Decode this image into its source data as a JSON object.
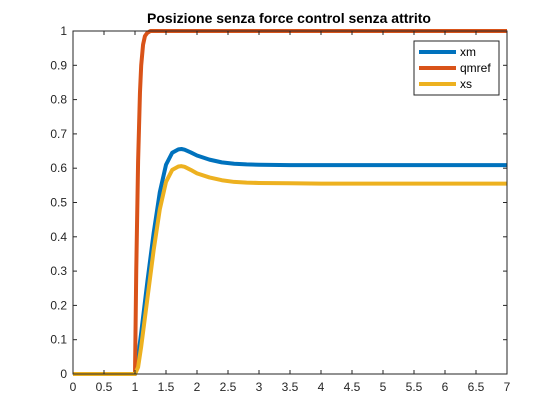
{
  "chart_data": {
    "type": "line",
    "title": "Posizione senza force control senza attrito",
    "xlabel": "",
    "ylabel": "",
    "xlim": [
      0,
      7
    ],
    "ylim": [
      0,
      1
    ],
    "xticks": [
      0,
      0.5,
      1,
      1.5,
      2,
      2.5,
      3,
      3.5,
      4,
      4.5,
      5,
      5.5,
      6,
      6.5,
      7
    ],
    "yticks": [
      0,
      0.1,
      0.2,
      0.3,
      0.4,
      0.5,
      0.6,
      0.7,
      0.8,
      0.9,
      1
    ],
    "xtick_labels": [
      "0",
      "0.5",
      "1",
      "1.5",
      "2",
      "2.5",
      "3",
      "3.5",
      "4",
      "4.5",
      "5",
      "5.5",
      "6",
      "6.5",
      "7"
    ],
    "ytick_labels": [
      "0",
      "0.1",
      "0.2",
      "0.3",
      "0.4",
      "0.5",
      "0.6",
      "0.7",
      "0.8",
      "0.9",
      "1"
    ],
    "grid": false,
    "legend_position": "top-right",
    "series": [
      {
        "name": "xm",
        "color": "#0072BD",
        "x": [
          0,
          1.0,
          1.05,
          1.1,
          1.2,
          1.3,
          1.4,
          1.5,
          1.6,
          1.7,
          1.75,
          1.8,
          1.9,
          2.0,
          2.2,
          2.4,
          2.6,
          2.8,
          3.0,
          3.5,
          4.0,
          5.0,
          6.0,
          7.0
        ],
        "y": [
          0,
          0,
          0.05,
          0.12,
          0.27,
          0.41,
          0.53,
          0.61,
          0.645,
          0.655,
          0.656,
          0.654,
          0.646,
          0.637,
          0.625,
          0.617,
          0.613,
          0.611,
          0.61,
          0.609,
          0.609,
          0.609,
          0.609,
          0.609
        ]
      },
      {
        "name": "qmref",
        "color": "#D95319",
        "x": [
          0,
          1.0,
          1.02,
          1.05,
          1.08,
          1.1,
          1.13,
          1.16,
          1.2,
          1.25,
          1.3,
          2.0,
          7.0
        ],
        "y": [
          0,
          0,
          0.3,
          0.62,
          0.82,
          0.9,
          0.96,
          0.985,
          0.995,
          1.0,
          1.0,
          1.0,
          1.0
        ],
        "linewidth": 4
      },
      {
        "name": "xs",
        "color": "#EDB120",
        "x": [
          0,
          1.0,
          1.05,
          1.1,
          1.2,
          1.3,
          1.4,
          1.5,
          1.6,
          1.7,
          1.75,
          1.8,
          1.9,
          2.0,
          2.2,
          2.4,
          2.6,
          2.8,
          3.0,
          3.5,
          4.0,
          5.0,
          6.0,
          7.0
        ],
        "y": [
          0,
          0,
          0.02,
          0.08,
          0.22,
          0.36,
          0.48,
          0.56,
          0.595,
          0.605,
          0.606,
          0.604,
          0.595,
          0.585,
          0.573,
          0.565,
          0.56,
          0.558,
          0.557,
          0.556,
          0.555,
          0.555,
          0.555,
          0.555
        ]
      }
    ]
  }
}
